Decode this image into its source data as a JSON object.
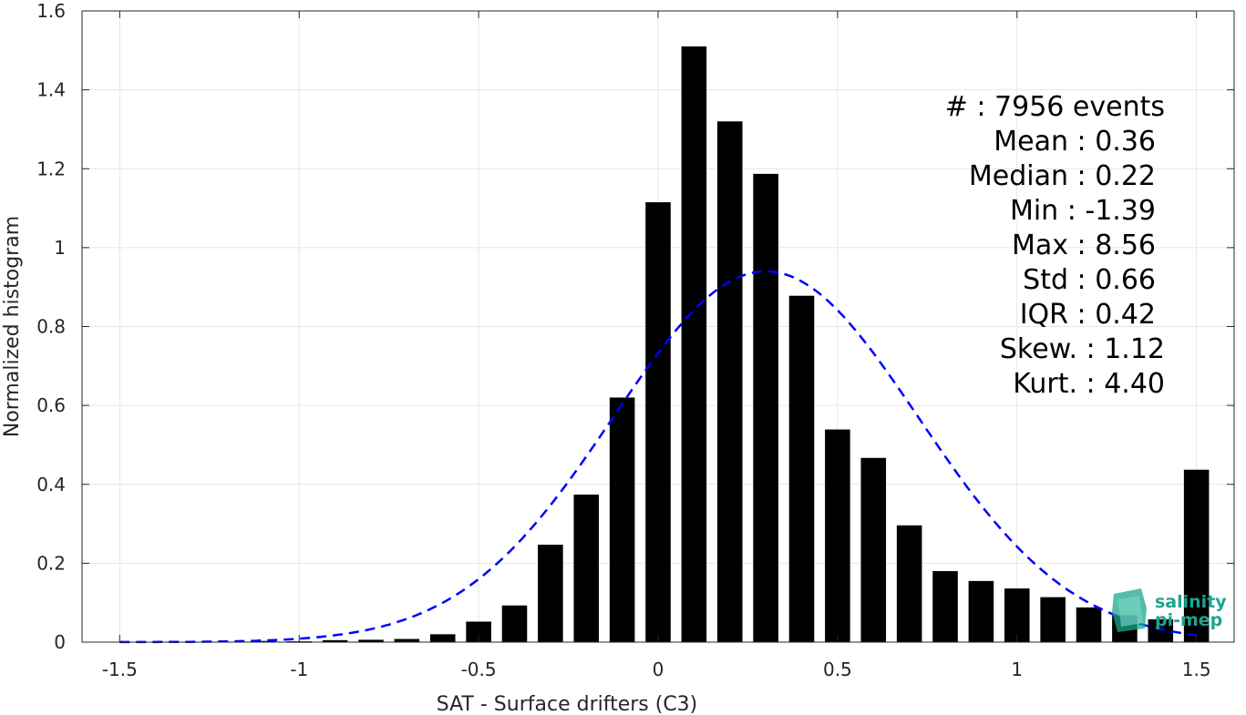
{
  "chart_data": {
    "type": "bar",
    "xlabel": "SAT - Surface drifters (C3)",
    "ylabel": "Normalized histogram",
    "xlim": [
      -1.5,
      1.5
    ],
    "ylim": [
      0,
      1.6
    ],
    "xticks": [
      -1.5,
      -1,
      -0.5,
      0,
      0.5,
      1,
      1.5
    ],
    "xtick_labels": [
      "-1.5",
      "-1",
      "-0.5",
      "0",
      "0.5",
      "1",
      "1.5"
    ],
    "yticks": [
      0,
      0.2,
      0.4,
      0.6,
      0.8,
      1,
      1.2,
      1.4,
      1.6
    ],
    "ytick_labels": [
      "0",
      "0.2",
      "0.4",
      "0.6",
      "0.8",
      "1",
      "1.2",
      "1.4",
      "1.6"
    ],
    "grid": true,
    "bar_color": "#000000",
    "bar_width": 0.07,
    "bins": [
      -1.5,
      -1.4,
      -1.3,
      -1.2,
      -1.1,
      -1.0,
      -0.9,
      -0.8,
      -0.7,
      -0.6,
      -0.5,
      -0.4,
      -0.3,
      -0.2,
      -0.1,
      0.0,
      0.1,
      0.2,
      0.3,
      0.4,
      0.5,
      0.6,
      0.7,
      0.8,
      0.9,
      1.0,
      1.1,
      1.2,
      1.3,
      1.4,
      1.5
    ],
    "values": [
      0,
      0,
      0,
      0,
      0.003,
      0.002,
      0.005,
      0.006,
      0.008,
      0.02,
      0.052,
      0.093,
      0.247,
      0.374,
      0.62,
      1.115,
      1.51,
      1.32,
      1.187,
      0.878,
      0.539,
      0.467,
      0.296,
      0.18,
      0.155,
      0.136,
      0.114,
      0.088,
      0.068,
      0.058,
      0.437
    ],
    "fit": {
      "name": "gaussian",
      "color": "#0000ff",
      "style": "dashed",
      "mean": 0.3,
      "std": 0.425,
      "peak": 0.94
    },
    "stats": [
      {
        "label": "#  : 7956 events"
      },
      {
        "label": "Mean : 0.36"
      },
      {
        "label": "Median : 0.22"
      },
      {
        "label": "Min : -1.39"
      },
      {
        "label": "Max : 8.56"
      },
      {
        "label": "Std : 0.66"
      },
      {
        "label": "IQR : 0.42"
      },
      {
        "label": "Skew. : 1.12"
      },
      {
        "label": "Kurt. : 4.40"
      }
    ],
    "logo": {
      "line1": "salinity",
      "line2": "pi-mep",
      "color": "#1aa58e"
    }
  }
}
